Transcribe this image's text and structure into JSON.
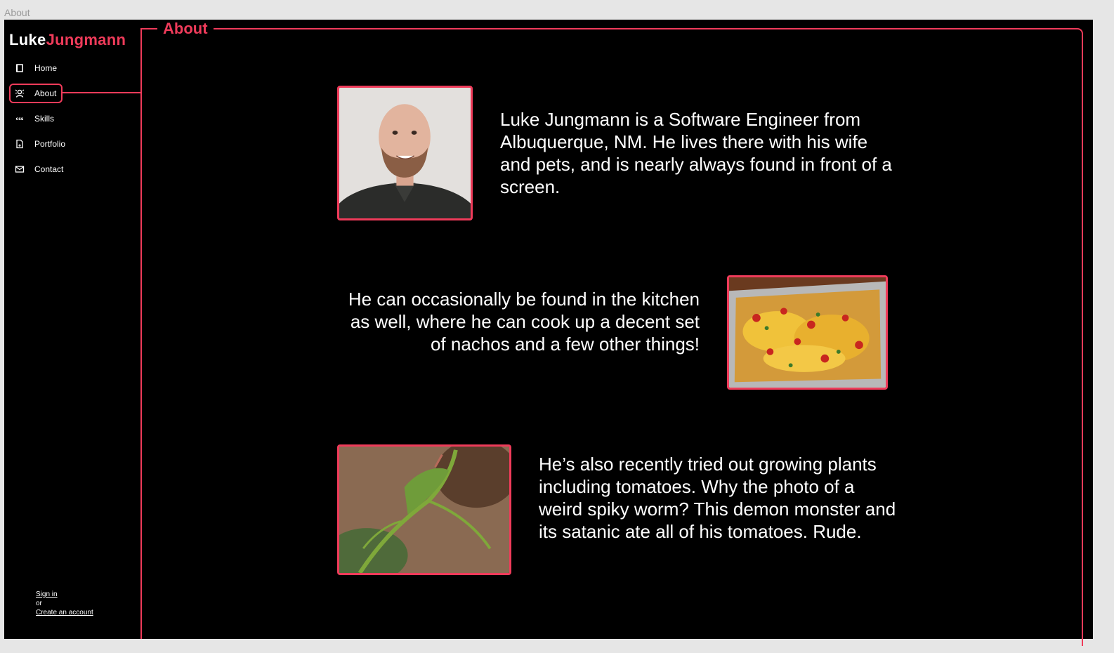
{
  "window": {
    "title": "About"
  },
  "brand": {
    "first": "Luke",
    "last": "Jungmann"
  },
  "page": {
    "title": "About"
  },
  "nav": {
    "items": [
      {
        "label": "Home",
        "icon": "home-icon"
      },
      {
        "label": "About",
        "icon": "about-icon"
      },
      {
        "label": "Skills",
        "icon": "css-icon"
      },
      {
        "label": "Portfolio",
        "icon": "document-icon"
      },
      {
        "label": "Contact",
        "icon": "mail-icon"
      }
    ],
    "active": "About"
  },
  "auth": {
    "sign_in": "Sign in",
    "or": "or",
    "create_account": "Create an account"
  },
  "sections": [
    {
      "text": "Luke Jungmann is a Software Engineer from Albuquerque, NM. He lives there with his wife and pets, and is nearly always found in front of a screen."
    },
    {
      "text": "He can occasionally be found in the kitchen as well, where he can cook up a decent set of nachos and a few other things!"
    },
    {
      "text": "He’s also recently tried out growing plants including tomatoes. Why the photo of a weird spiky worm? This demon monster and its satanic ate all of his tomatoes. Rude."
    }
  ],
  "colors": {
    "accent": "#ef3b5a",
    "background": "#000000",
    "text": "#ffffff"
  }
}
